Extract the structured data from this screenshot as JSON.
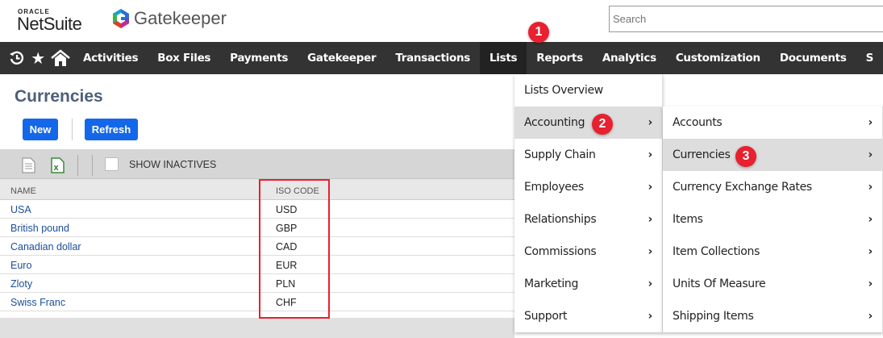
{
  "header": {
    "oracle": "ORACLE",
    "netsuite": "NetSuite",
    "gatekeeper": "Gatekeeper",
    "search_placeholder": "Search"
  },
  "nav": {
    "icons": [
      "recent-icon",
      "star-icon",
      "home-icon"
    ],
    "items": [
      "Activities",
      "Box Files",
      "Payments",
      "Gatekeeper",
      "Transactions",
      "Lists",
      "Reports",
      "Analytics",
      "Customization",
      "Documents",
      "S"
    ],
    "active": "Lists"
  },
  "page": {
    "title": "Currencies",
    "new_label": "New",
    "refresh_label": "Refresh",
    "show_inactives": "SHOW INACTIVES"
  },
  "table": {
    "columns": [
      "NAME",
      "ISO CODE"
    ],
    "rows": [
      {
        "name": "USA",
        "code": "USD"
      },
      {
        "name": "British pound",
        "code": "GBP"
      },
      {
        "name": "Canadian dollar",
        "code": "CAD"
      },
      {
        "name": "Euro",
        "code": "EUR"
      },
      {
        "name": "Zloty",
        "code": "PLN"
      },
      {
        "name": "Swiss Franc",
        "code": "CHF"
      }
    ]
  },
  "menu": {
    "items": [
      "Lists Overview",
      "Accounting",
      "Supply Chain",
      "Employees",
      "Relationships",
      "Commissions",
      "Marketing",
      "Support"
    ],
    "highlighted": "Accounting"
  },
  "submenu": {
    "items": [
      "Accounts",
      "Currencies",
      "Currency Exchange Rates",
      "Items",
      "Item Collections",
      "Units Of Measure",
      "Shipping Items"
    ],
    "highlighted": "Currencies"
  },
  "badges": [
    "1",
    "2",
    "3"
  ],
  "colors": {
    "nav": "#333333",
    "button": "#1467e8",
    "badge": "#e8202f",
    "link": "#1a4e9a",
    "annotation_box": "#e8202f"
  }
}
